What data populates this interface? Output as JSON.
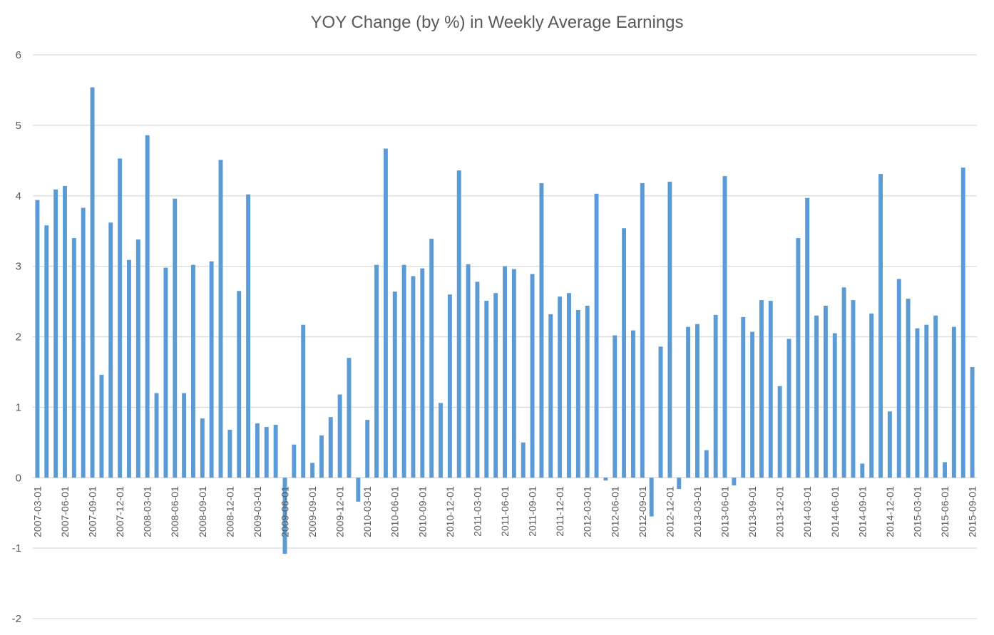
{
  "chart_data": {
    "type": "bar",
    "title": "YOY Change (by %) in Weekly Average Earnings",
    "xlabel": "",
    "ylabel": "",
    "ylim": [
      -2,
      6
    ],
    "yticks": [
      -2,
      -1,
      0,
      1,
      2,
      3,
      4,
      5,
      6
    ],
    "grid": true,
    "legend": "none",
    "bar_color": "#5b9bd5",
    "categories": [
      "2007-03-01",
      "2007-04-01",
      "2007-05-01",
      "2007-06-01",
      "2007-07-01",
      "2007-08-01",
      "2007-09-01",
      "2007-10-01",
      "2007-11-01",
      "2007-12-01",
      "2008-01-01",
      "2008-02-01",
      "2008-03-01",
      "2008-04-01",
      "2008-05-01",
      "2008-06-01",
      "2008-07-01",
      "2008-08-01",
      "2008-09-01",
      "2008-10-01",
      "2008-11-01",
      "2008-12-01",
      "2009-01-01",
      "2009-02-01",
      "2009-03-01",
      "2009-04-01",
      "2009-05-01",
      "2009-06-01",
      "2009-07-01",
      "2009-08-01",
      "2009-09-01",
      "2009-10-01",
      "2009-11-01",
      "2009-12-01",
      "2010-01-01",
      "2010-02-01",
      "2010-03-01",
      "2010-04-01",
      "2010-05-01",
      "2010-06-01",
      "2010-07-01",
      "2010-08-01",
      "2010-09-01",
      "2010-10-01",
      "2010-11-01",
      "2010-12-01",
      "2011-01-01",
      "2011-02-01",
      "2011-03-01",
      "2011-04-01",
      "2011-05-01",
      "2011-06-01",
      "2011-07-01",
      "2011-08-01",
      "2011-09-01",
      "2011-10-01",
      "2011-11-01",
      "2011-12-01",
      "2012-01-01",
      "2012-02-01",
      "2012-03-01",
      "2012-04-01",
      "2012-05-01",
      "2012-06-01",
      "2012-07-01",
      "2012-08-01",
      "2012-09-01",
      "2012-10-01",
      "2012-11-01",
      "2012-12-01",
      "2013-01-01",
      "2013-02-01",
      "2013-03-01",
      "2013-04-01",
      "2013-05-01",
      "2013-06-01",
      "2013-07-01",
      "2013-08-01",
      "2013-09-01",
      "2013-10-01",
      "2013-11-01",
      "2013-12-01",
      "2014-01-01",
      "2014-02-01",
      "2014-03-01",
      "2014-04-01",
      "2014-05-01",
      "2014-06-01",
      "2014-07-01",
      "2014-08-01",
      "2014-09-01",
      "2014-10-01",
      "2014-11-01",
      "2014-12-01",
      "2015-01-01",
      "2015-02-01",
      "2015-03-01",
      "2015-04-01",
      "2015-05-01",
      "2015-06-01",
      "2015-07-01",
      "2015-08-01",
      "2015-09-01"
    ],
    "values": [
      3.94,
      3.58,
      4.09,
      4.14,
      3.4,
      3.83,
      5.54,
      1.46,
      3.62,
      4.53,
      3.09,
      3.38,
      4.86,
      1.2,
      2.98,
      3.96,
      1.2,
      3.02,
      0.84,
      3.07,
      4.51,
      0.68,
      2.65,
      4.02,
      0.77,
      0.72,
      0.75,
      -1.08,
      0.47,
      2.17,
      0.21,
      0.6,
      0.86,
      1.18,
      1.7,
      -0.34,
      0.82,
      3.02,
      4.67,
      2.64,
      3.02,
      2.86,
      2.97,
      3.39,
      1.06,
      2.6,
      4.36,
      3.03,
      2.78,
      2.51,
      2.62,
      3.0,
      2.96,
      0.5,
      2.89,
      4.18,
      2.32,
      2.57,
      2.62,
      2.38,
      2.44,
      4.03,
      -0.04,
      2.02,
      3.54,
      2.09,
      4.18,
      -0.55,
      1.86,
      4.2,
      -0.16,
      2.14,
      2.18,
      0.39,
      2.31,
      4.28,
      -0.11,
      2.28,
      2.07,
      2.52,
      2.51,
      1.3,
      1.97,
      3.4,
      3.97,
      2.3,
      2.44,
      2.05,
      2.7,
      2.52,
      0.2,
      2.33,
      4.31,
      0.94,
      2.82,
      2.54,
      2.12,
      2.17,
      2.3,
      0.22,
      2.14,
      4.4,
      1.57
    ],
    "labeled_tick_every": 3
  }
}
